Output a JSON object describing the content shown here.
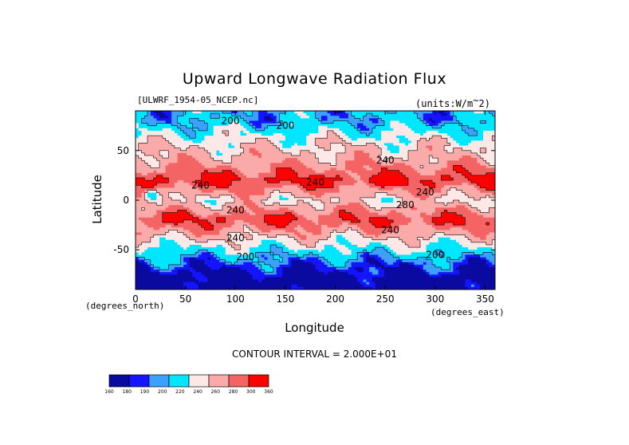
{
  "chart_data": {
    "type": "heatmap",
    "title": "Upward Longwave Radiation Flux",
    "subtitle": "[ULWRF_1954-05_NCEP.nc]",
    "units_label": "(units:W/m^2)",
    "xlabel": "Longitude",
    "ylabel": "Latitude",
    "x_unit_label": "(degrees_east)",
    "y_unit_label": "(degrees_north)",
    "xlim": [
      0,
      360
    ],
    "ylim": [
      -90,
      90
    ],
    "x_ticks": [
      "0",
      "50",
      "100",
      "150",
      "200",
      "250",
      "300",
      "350"
    ],
    "y_ticks": [
      "50",
      "0",
      "-50"
    ],
    "contour_interval_label": "CONTOUR INTERVAL = 2.000E+01",
    "contour_labels": [
      {
        "text": "200",
        "lon": 95,
        "lat": 80
      },
      {
        "text": "200",
        "lon": 150,
        "lat": 75
      },
      {
        "text": "240",
        "lon": 250,
        "lat": 40
      },
      {
        "text": "240",
        "lon": 65,
        "lat": 15
      },
      {
        "text": "240",
        "lon": 180,
        "lat": 18
      },
      {
        "text": "240",
        "lon": 290,
        "lat": 8
      },
      {
        "text": "280",
        "lon": 270,
        "lat": -5
      },
      {
        "text": "240",
        "lon": 100,
        "lat": -10
      },
      {
        "text": "240",
        "lon": 255,
        "lat": -30
      },
      {
        "text": "240",
        "lon": 100,
        "lat": -38
      },
      {
        "text": "200",
        "lon": 110,
        "lat": -57
      },
      {
        "text": "200",
        "lon": 300,
        "lat": -55
      }
    ],
    "colorbar": {
      "levels": [
        160,
        180,
        190,
        200,
        220,
        240,
        260,
        280,
        300,
        360
      ],
      "level_labels": [
        "160",
        "180",
        "190",
        "200",
        "220",
        "240",
        "260",
        "280",
        "300",
        "360"
      ],
      "colors": [
        "#0a0aa0",
        "#1414ff",
        "#3ca0ff",
        "#00e6ff",
        "#fde8e8",
        "#fbaaaa",
        "#f56464",
        "#ff0000"
      ]
    },
    "latitude_band_values": [
      {
        "lat": 80,
        "value": 200
      },
      {
        "lat": 60,
        "value": 230
      },
      {
        "lat": 40,
        "value": 250
      },
      {
        "lat": 20,
        "value": 285
      },
      {
        "lat": 0,
        "value": 235
      },
      {
        "lat": -20,
        "value": 280
      },
      {
        "lat": -40,
        "value": 235
      },
      {
        "lat": -60,
        "value": 195
      },
      {
        "lat": -80,
        "value": 165
      }
    ]
  }
}
